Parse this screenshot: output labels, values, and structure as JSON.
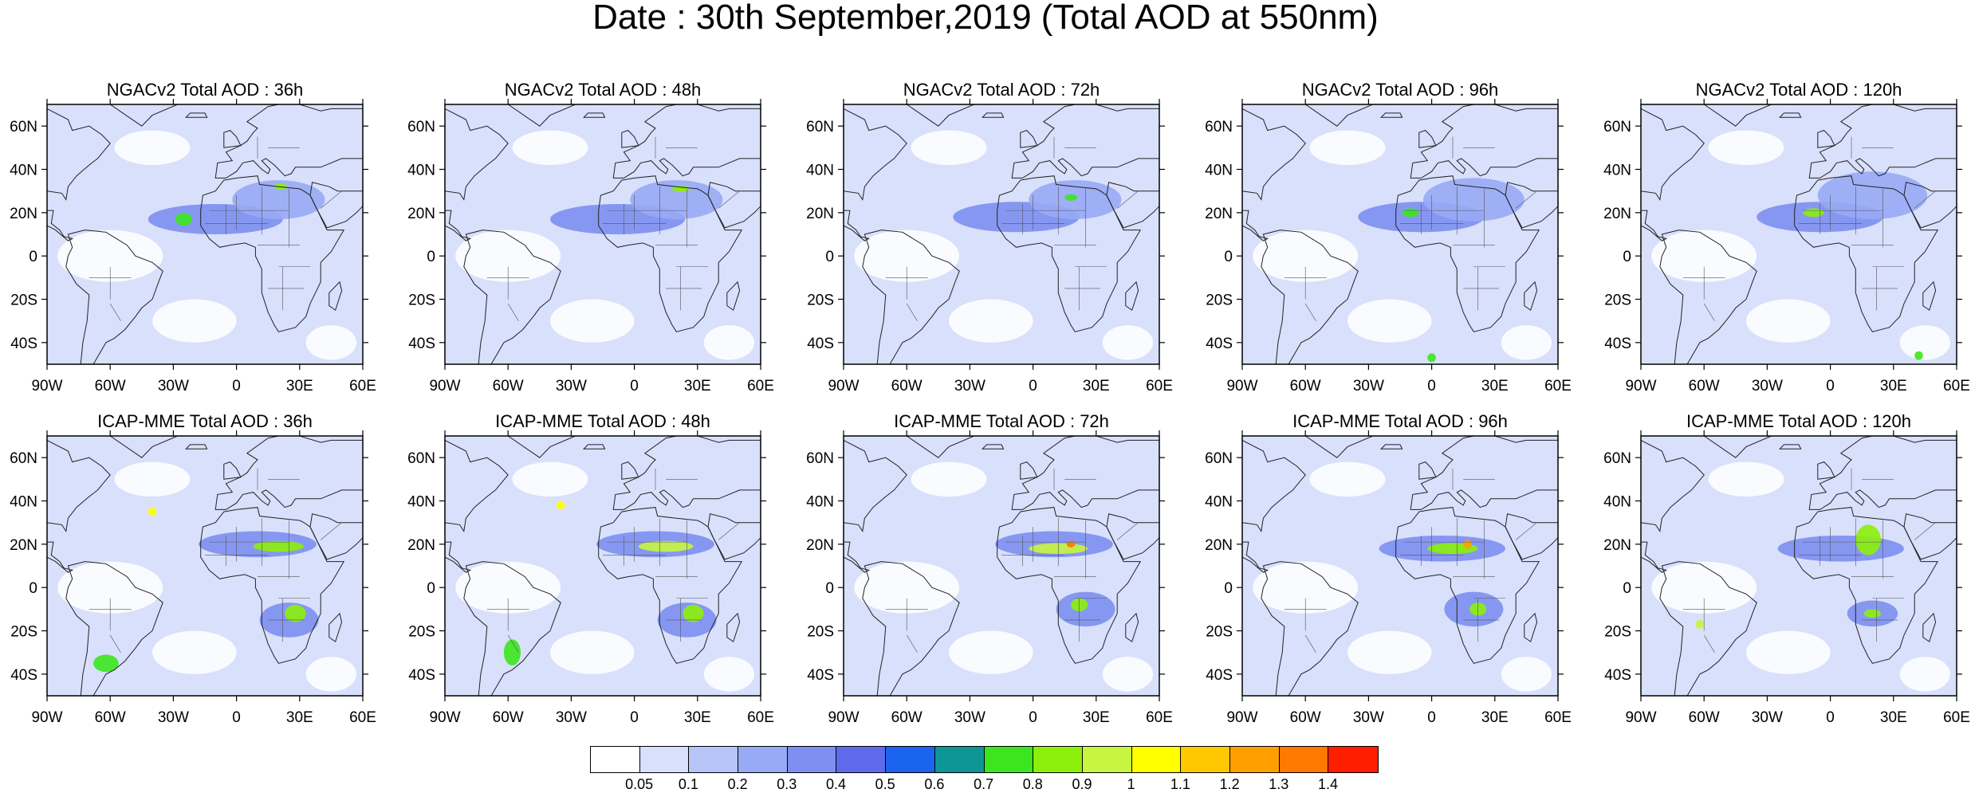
{
  "figure_title": "Date : 30th September,2019 (Total AOD at 550nm)",
  "panels": [
    {
      "title": "NGACv2 Total AOD : 36h",
      "model": "NGACv2",
      "lead": "36h"
    },
    {
      "title": "NGACv2 Total AOD : 48h",
      "model": "NGACv2",
      "lead": "48h"
    },
    {
      "title": "NGACv2 Total AOD : 72h",
      "model": "NGACv2",
      "lead": "72h"
    },
    {
      "title": "NGACv2 Total AOD : 96h",
      "model": "NGACv2",
      "lead": "96h"
    },
    {
      "title": "NGACv2 Total AOD : 120h",
      "model": "NGACv2",
      "lead": "120h"
    },
    {
      "title": "ICAP-MME Total AOD : 36h",
      "model": "ICAP-MME",
      "lead": "36h"
    },
    {
      "title": "ICAP-MME Total AOD : 48h",
      "model": "ICAP-MME",
      "lead": "48h"
    },
    {
      "title": "ICAP-MME Total AOD : 72h",
      "model": "ICAP-MME",
      "lead": "72h"
    },
    {
      "title": "ICAP-MME Total AOD : 96h",
      "model": "ICAP-MME",
      "lead": "96h"
    },
    {
      "title": "ICAP-MME Total AOD : 120h",
      "model": "ICAP-MME",
      "lead": "120h"
    }
  ],
  "map_extent": {
    "lon": [
      -90,
      60
    ],
    "lat": [
      -50,
      70
    ]
  },
  "lat_ticks": [
    {
      "value": 60,
      "label": "60N"
    },
    {
      "value": 40,
      "label": "40N"
    },
    {
      "value": 20,
      "label": "20N"
    },
    {
      "value": 0,
      "label": "0"
    },
    {
      "value": -20,
      "label": "20S"
    },
    {
      "value": -40,
      "label": "40S"
    }
  ],
  "lon_ticks": [
    {
      "value": -90,
      "label": "90W"
    },
    {
      "value": -60,
      "label": "60W"
    },
    {
      "value": -30,
      "label": "30W"
    },
    {
      "value": 0,
      "label": "0"
    },
    {
      "value": 30,
      "label": "30E"
    },
    {
      "value": 60,
      "label": "60E"
    }
  ],
  "colorbar": {
    "labels": [
      "0.05",
      "0.1",
      "0.2",
      "0.3",
      "0.4",
      "0.5",
      "0.6",
      "0.7",
      "0.8",
      "0.9",
      "1",
      "1.1",
      "1.2",
      "1.3",
      "1.4"
    ],
    "colors": [
      "#ffffff",
      "#d8e0fb",
      "#b7c4f8",
      "#98aaf5",
      "#7d8ff1",
      "#5e6aec",
      "#1a64f0",
      "#0e9696",
      "#3ce61e",
      "#8cf00a",
      "#c8f540",
      "#ffff00",
      "#ffc800",
      "#ffa000",
      "#ff7800",
      "#ff1e00"
    ]
  },
  "colors": {
    "ocean": "#ffffff",
    "background_aod": "#d8e0fb",
    "coastline": "#222222"
  },
  "plumes": {
    "NGACv2": {
      "36h": [
        {
          "lon": -10,
          "lat": 17,
          "rx": 32,
          "ry": 7,
          "level": 4
        },
        {
          "lon": 20,
          "lat": 26,
          "rx": 22,
          "ry": 9,
          "level": 3
        },
        {
          "lon": -25,
          "lat": 17,
          "rx": 4,
          "ry": 3,
          "level": 8
        },
        {
          "lon": 21,
          "lat": 32,
          "rx": 3,
          "ry": 1.5,
          "level": 9
        }
      ],
      "48h": [
        {
          "lon": -8,
          "lat": 17,
          "rx": 32,
          "ry": 7,
          "level": 4
        },
        {
          "lon": 20,
          "lat": 26,
          "rx": 22,
          "ry": 9,
          "level": 3
        },
        {
          "lon": 22,
          "lat": 31,
          "rx": 4,
          "ry": 1.5,
          "level": 9
        }
      ],
      "72h": [
        {
          "lon": -8,
          "lat": 18,
          "rx": 30,
          "ry": 7,
          "level": 4
        },
        {
          "lon": 20,
          "lat": 26,
          "rx": 22,
          "ry": 9,
          "level": 3
        },
        {
          "lon": 18,
          "lat": 27,
          "rx": 3,
          "ry": 1.5,
          "level": 8
        }
      ],
      "96h": [
        {
          "lon": -5,
          "lat": 18,
          "rx": 30,
          "ry": 7,
          "level": 4
        },
        {
          "lon": 20,
          "lat": 26,
          "rx": 24,
          "ry": 10,
          "level": 3
        },
        {
          "lon": -10,
          "lat": 20,
          "rx": 4,
          "ry": 2,
          "level": 8
        },
        {
          "lon": 0,
          "lat": -47,
          "rx": 2,
          "ry": 2,
          "level": 8
        }
      ],
      "120h": [
        {
          "lon": -5,
          "lat": 18,
          "rx": 30,
          "ry": 7,
          "level": 4
        },
        {
          "lon": 20,
          "lat": 28,
          "rx": 26,
          "ry": 11,
          "level": 3
        },
        {
          "lon": -8,
          "lat": 20,
          "rx": 5,
          "ry": 2,
          "level": 9
        },
        {
          "lon": 42,
          "lat": -46,
          "rx": 2,
          "ry": 2,
          "level": 8
        }
      ]
    },
    "ICAP-MME": {
      "36h": [
        {
          "lon": 10,
          "lat": 20,
          "rx": 28,
          "ry": 6,
          "level": 4
        },
        {
          "lon": 25,
          "lat": -15,
          "rx": 14,
          "ry": 8,
          "level": 4
        },
        {
          "lon": 20,
          "lat": 19,
          "rx": 12,
          "ry": 2.5,
          "level": 9
        },
        {
          "lon": 28,
          "lat": -12,
          "rx": 5,
          "ry": 4,
          "level": 9
        },
        {
          "lon": -40,
          "lat": 35,
          "rx": 2,
          "ry": 2,
          "level": 11
        },
        {
          "lon": -62,
          "lat": -35,
          "rx": 6,
          "ry": 4,
          "level": 8
        }
      ],
      "48h": [
        {
          "lon": 10,
          "lat": 20,
          "rx": 28,
          "ry": 6,
          "level": 4
        },
        {
          "lon": 25,
          "lat": -15,
          "rx": 14,
          "ry": 8,
          "level": 4
        },
        {
          "lon": 15,
          "lat": 19,
          "rx": 13,
          "ry": 2.5,
          "level": 10
        },
        {
          "lon": 28,
          "lat": -12,
          "rx": 5,
          "ry": 4,
          "level": 9
        },
        {
          "lon": -35,
          "lat": 38,
          "rx": 2,
          "ry": 2,
          "level": 11
        },
        {
          "lon": -58,
          "lat": -30,
          "rx": 4,
          "ry": 6,
          "level": 8
        }
      ],
      "72h": [
        {
          "lon": 10,
          "lat": 20,
          "rx": 28,
          "ry": 6,
          "level": 4
        },
        {
          "lon": 25,
          "lat": -10,
          "rx": 14,
          "ry": 8,
          "level": 4
        },
        {
          "lon": 12,
          "lat": 18,
          "rx": 14,
          "ry": 2.5,
          "level": 10
        },
        {
          "lon": 18,
          "lat": 20,
          "rx": 2,
          "ry": 1.5,
          "level": 14
        },
        {
          "lon": 22,
          "lat": -8,
          "rx": 4,
          "ry": 3,
          "level": 9
        }
      ],
      "96h": [
        {
          "lon": 5,
          "lat": 18,
          "rx": 30,
          "ry": 6,
          "level": 4
        },
        {
          "lon": 20,
          "lat": -10,
          "rx": 14,
          "ry": 8,
          "level": 4
        },
        {
          "lon": 10,
          "lat": 18,
          "rx": 12,
          "ry": 2.5,
          "level": 9
        },
        {
          "lon": 17,
          "lat": 20,
          "rx": 2,
          "ry": 2,
          "level": 13
        },
        {
          "lon": 22,
          "lat": -10,
          "rx": 4,
          "ry": 3,
          "level": 9
        }
      ],
      "120h": [
        {
          "lon": 5,
          "lat": 18,
          "rx": 30,
          "ry": 6,
          "level": 4
        },
        {
          "lon": 18,
          "lat": 22,
          "rx": 6,
          "ry": 7,
          "level": 9
        },
        {
          "lon": 20,
          "lat": -12,
          "rx": 12,
          "ry": 6,
          "level": 4
        },
        {
          "lon": 20,
          "lat": -12,
          "rx": 4,
          "ry": 2,
          "level": 9
        },
        {
          "lon": -62,
          "lat": -17,
          "rx": 2,
          "ry": 2,
          "level": 10
        }
      ]
    }
  }
}
